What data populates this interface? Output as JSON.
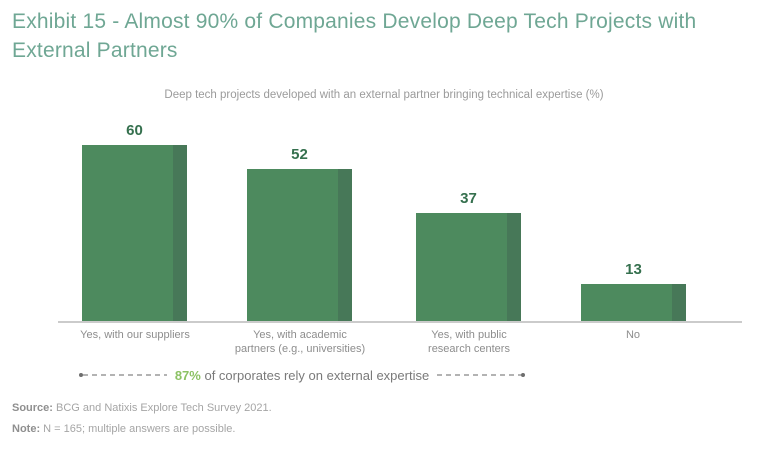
{
  "header": {
    "title": "Exhibit 15 - Almost 90% of Companies Develop Deep Tech Projects with External Partners",
    "title_color": "#6FA794"
  },
  "chart_data": {
    "type": "bar",
    "title": "Deep tech projects developed with an external partner bringing technical expertise (%)",
    "categories": [
      "Yes, with our suppliers",
      "Yes, with academic\npartners (e.g., universities)",
      "Yes, with public\nresearch centers",
      "No"
    ],
    "values": [
      60,
      52,
      37,
      13
    ],
    "xlabel": "",
    "ylabel": "",
    "ylim": [
      0,
      62
    ],
    "grid": false,
    "legend_position": "none",
    "bar_color": "#4D8A5E",
    "bar_edge_color": "#477858",
    "value_label_color": "#35704E",
    "axis_color": "#cbcbcb"
  },
  "annotation": {
    "highlight": "87%",
    "highlight_color": "#8CC264",
    "text": "of corporates rely on external expertise"
  },
  "footer": {
    "source_label": "Source:",
    "source_text": "BCG and Natixis Explore Tech Survey 2021.",
    "note_label": "Note:",
    "note_text": "N = 165; multiple answers are possible."
  }
}
